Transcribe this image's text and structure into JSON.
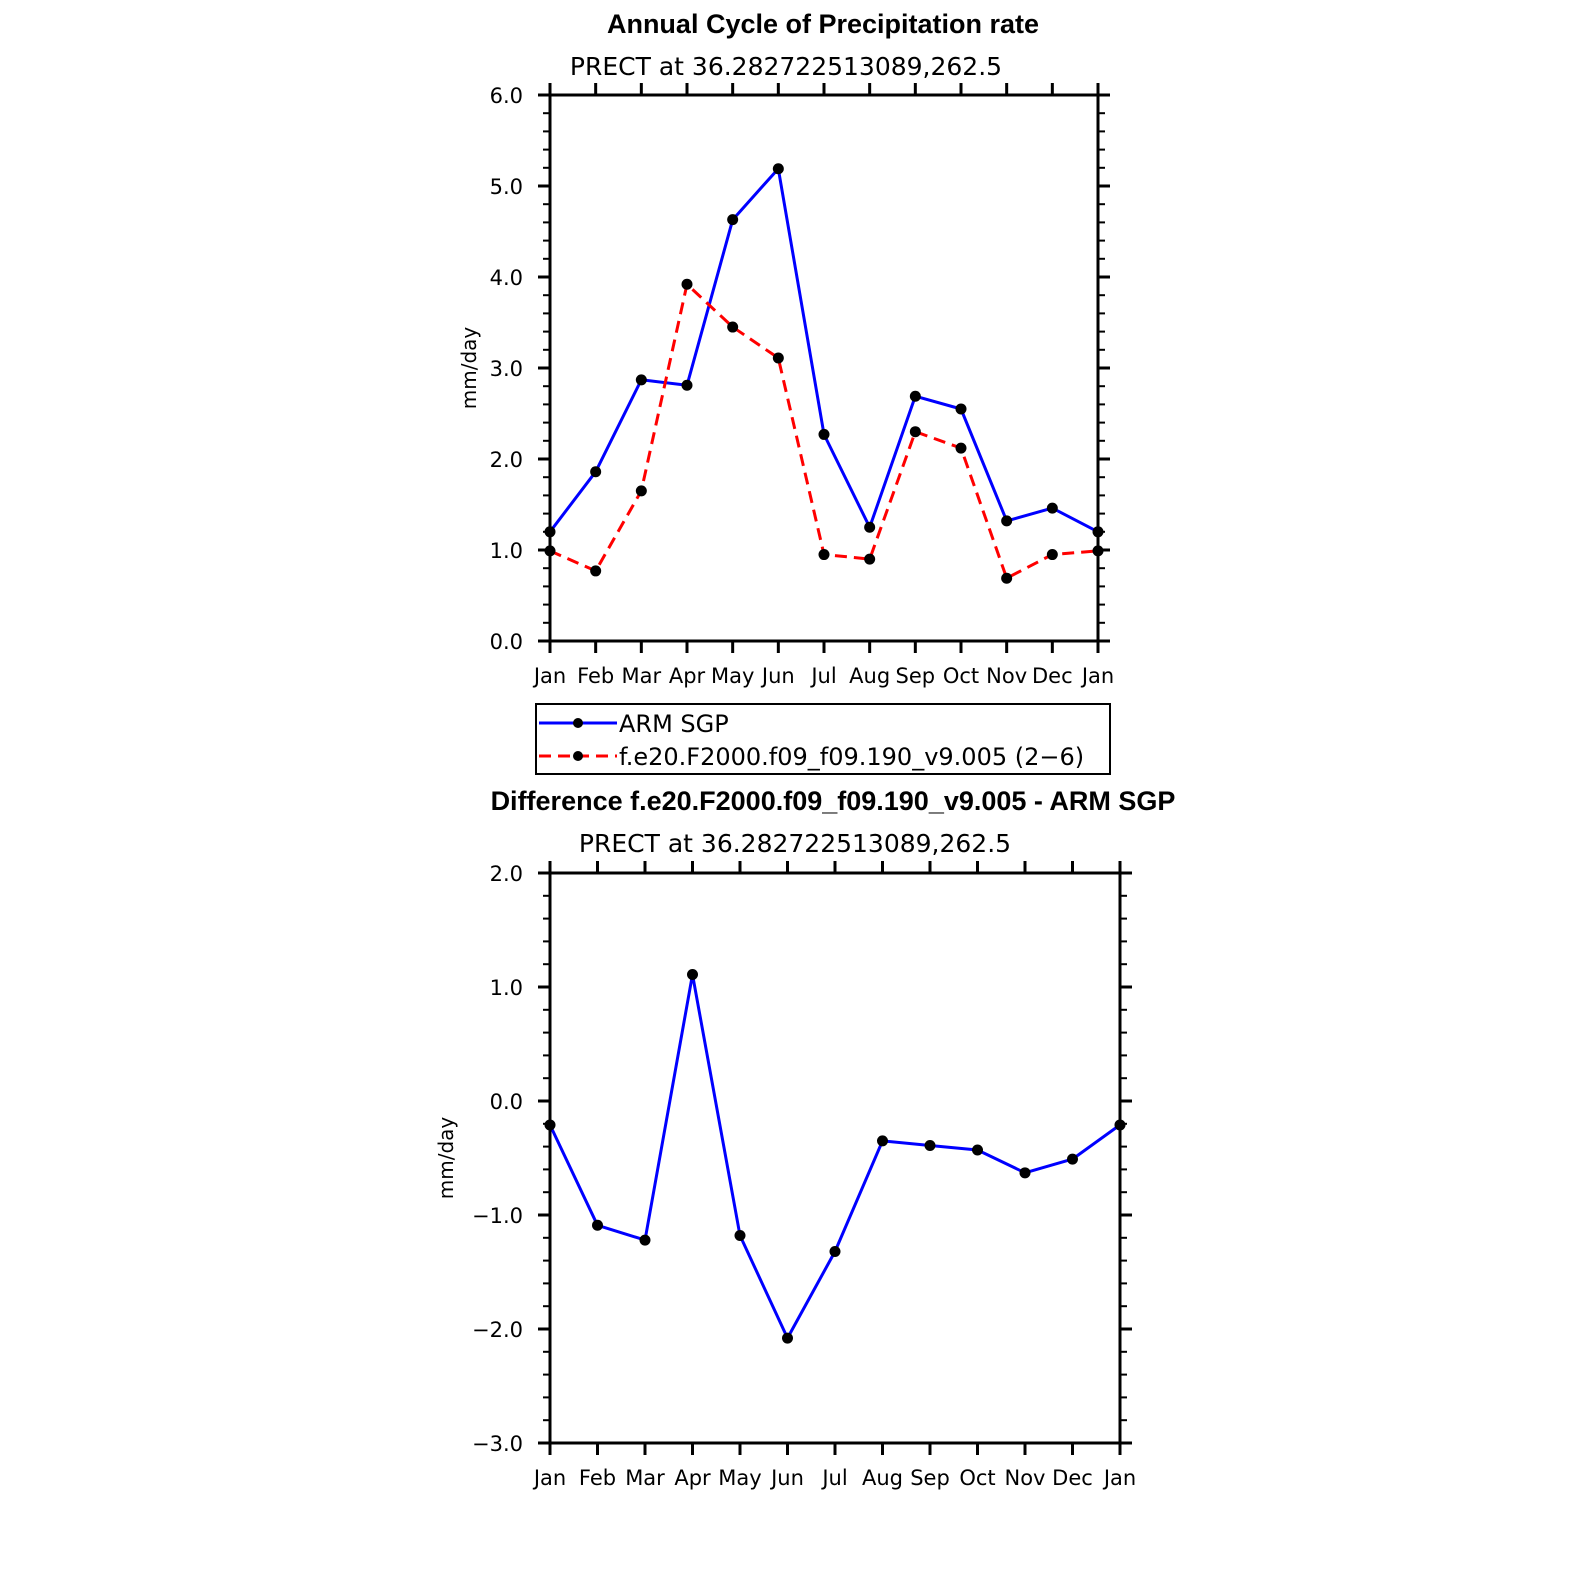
{
  "chart_data": [
    {
      "type": "line",
      "title": "Annual Cycle of Precipitation rate",
      "subtitle": "PRECT at 36.282722513089,262.5",
      "ylabel": "mm/day",
      "xlabel": "",
      "categories": [
        "Jan",
        "Feb",
        "Mar",
        "Apr",
        "May",
        "Jun",
        "Jul",
        "Aug",
        "Sep",
        "Oct",
        "Nov",
        "Dec",
        "Jan"
      ],
      "ylim": [
        0,
        6
      ],
      "yticks": [
        "0.0",
        "1.0",
        "2.0",
        "3.0",
        "4.0",
        "5.0",
        "6.0"
      ],
      "series": [
        {
          "name": "ARM SGP",
          "color": "#0000ff",
          "dash": "solid",
          "values": [
            1.2,
            1.86,
            2.87,
            2.81,
            4.63,
            5.19,
            2.27,
            1.25,
            2.69,
            2.55,
            1.32,
            1.46,
            1.2
          ]
        },
        {
          "name": "f.e20.F2000.f09_f09.190_v9.005 (2−6)",
          "color": "#ff0000",
          "dash": "dashed",
          "values": [
            0.99,
            0.77,
            1.65,
            3.92,
            3.45,
            3.11,
            0.95,
            0.9,
            2.3,
            2.12,
            0.69,
            0.95,
            0.99
          ]
        }
      ],
      "legend": [
        "ARM SGP",
        "f.e20.F2000.f09_f09.190_v9.005 (2−6)"
      ]
    },
    {
      "type": "line",
      "title": "Difference f.e20.F2000.f09_f09.190_v9.005 - ARM SGP",
      "subtitle": "PRECT at 36.282722513089,262.5",
      "ylabel": "mm/day",
      "xlabel": "",
      "categories": [
        "Jan",
        "Feb",
        "Mar",
        "Apr",
        "May",
        "Jun",
        "Jul",
        "Aug",
        "Sep",
        "Oct",
        "Nov",
        "Dec",
        "Jan"
      ],
      "ylim": [
        -3,
        2
      ],
      "yticks": [
        "−3.0",
        "−2.0",
        "−1.0",
        "0.0",
        "1.0",
        "2.0"
      ],
      "series": [
        {
          "name": "Difference",
          "color": "#0000ff",
          "dash": "solid",
          "values": [
            -0.21,
            -1.09,
            -1.22,
            1.11,
            -1.18,
            -2.08,
            -1.32,
            -0.35,
            -0.39,
            -0.43,
            -0.63,
            -0.51,
            -0.21
          ]
        }
      ]
    }
  ]
}
